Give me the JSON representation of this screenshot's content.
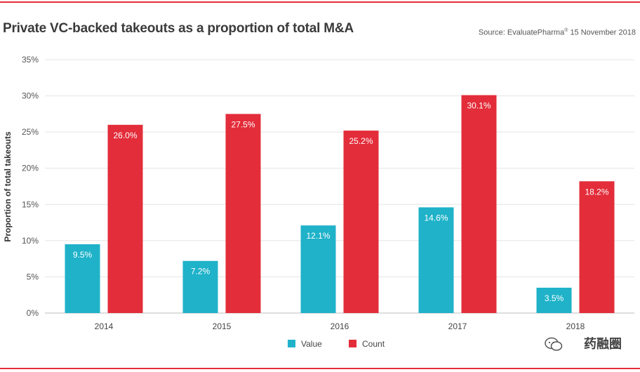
{
  "title": "Private VC-backed takeouts as a proportion of total M&A",
  "source": "Source: EvaluatePharma",
  "source_sup": "®",
  "source_date": "15 November 2018",
  "watermark": "药融圈",
  "colors": {
    "value": "#1fb2c9",
    "count": "#e32d3a",
    "accent_rule": "#e32d3a"
  },
  "chart_data": {
    "type": "bar",
    "title": "Private VC-backed takeouts as a proportion of total M&A",
    "xlabel": "",
    "ylabel": "Proportion of total takeouts",
    "categories": [
      "2014",
      "2015",
      "2016",
      "2017",
      "2018"
    ],
    "series": [
      {
        "name": "Value",
        "values": [
          9.5,
          7.2,
          12.1,
          14.6,
          3.5
        ],
        "labels": [
          "9.5%",
          "7.2%",
          "12.1%",
          "14.6%",
          "3.5%"
        ]
      },
      {
        "name": "Count",
        "values": [
          26.0,
          27.5,
          25.2,
          30.1,
          18.2
        ],
        "labels": [
          "26.0%",
          "27.5%",
          "25.2%",
          "30.1%",
          "18.2%"
        ]
      }
    ],
    "ylim": [
      0,
      35
    ],
    "yticks": [
      0,
      5,
      10,
      15,
      20,
      25,
      30,
      35
    ],
    "ytick_labels": [
      "0%",
      "5%",
      "10%",
      "15%",
      "20%",
      "25%",
      "30%",
      "35%"
    ],
    "grid": true,
    "legend": "bottom-center"
  }
}
